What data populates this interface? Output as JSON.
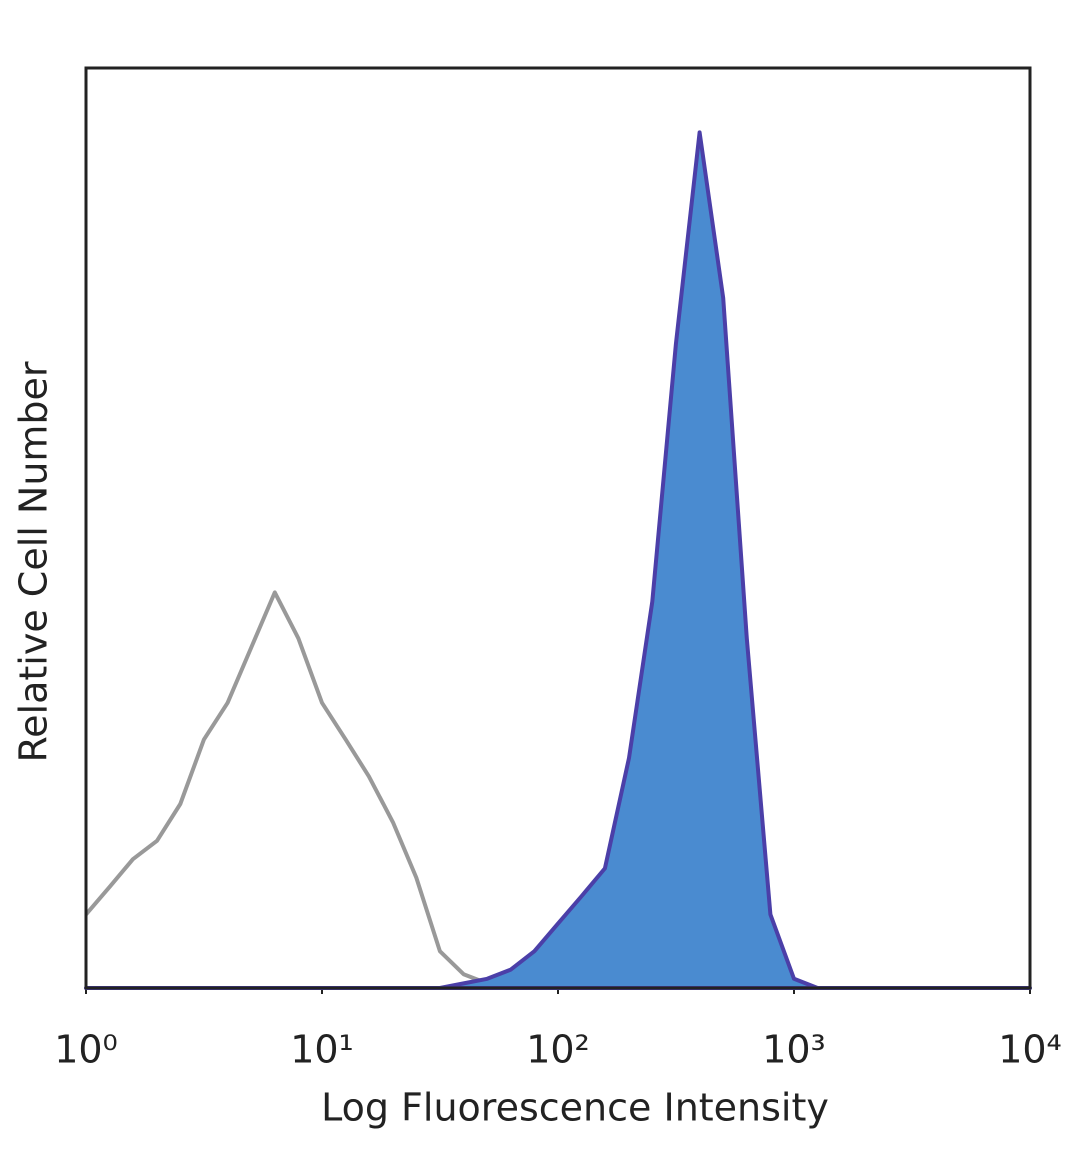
{
  "chart_data": {
    "type": "area",
    "x_label": "Log Fluorescence Intensity",
    "y_label": "Relative Cell Number",
    "x_scale": "log",
    "xlim": [
      1,
      10000
    ],
    "ylim": [
      0,
      100
    ],
    "xticks": [
      {
        "value": 1,
        "label": "10⁰"
      },
      {
        "value": 10,
        "label": "10¹"
      },
      {
        "value": 100,
        "label": "10²"
      },
      {
        "value": 1000,
        "label": "10³"
      },
      {
        "value": 10000,
        "label": "10⁴"
      }
    ],
    "x": [
      1,
      1.26,
      1.58,
      2,
      2.51,
      3.16,
      3.98,
      5.01,
      6.31,
      7.94,
      10,
      12.6,
      15.8,
      20,
      25.1,
      31.6,
      39.8,
      50.1,
      63.1,
      79.4,
      100,
      126,
      158,
      200,
      251,
      316,
      398,
      501,
      631,
      794,
      1000,
      1259,
      1585,
      1995,
      2512,
      3162,
      3981,
      5012,
      6310,
      7943,
      10000
    ],
    "series": [
      {
        "color": "#999999",
        "filled": false,
        "values": [
          8,
          11,
          14,
          16,
          20,
          27,
          31,
          37,
          43,
          38,
          31,
          27,
          23,
          18,
          12,
          4,
          1.5,
          0.5,
          0,
          0,
          0,
          0,
          0,
          0,
          0,
          0,
          0,
          0,
          0,
          0,
          0,
          0,
          0,
          0,
          0,
          0,
          0,
          0,
          0,
          0,
          0
        ]
      },
      {
        "color": "#4a8bd0",
        "line_color": "#4b3fa8",
        "filled": true,
        "values": [
          0,
          0,
          0,
          0,
          0,
          0,
          0,
          0,
          0,
          0,
          0,
          0,
          0,
          0,
          0,
          0,
          0.5,
          1,
          2,
          4,
          7,
          10,
          13,
          25,
          42,
          70,
          93,
          75,
          38,
          8,
          1,
          0,
          0,
          0,
          0,
          0,
          0,
          0,
          0,
          0,
          0
        ]
      }
    ]
  }
}
